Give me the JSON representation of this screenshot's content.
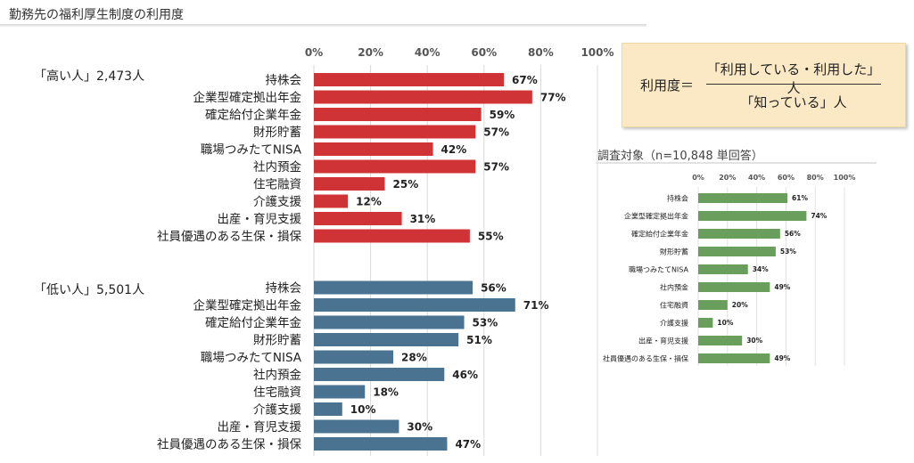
{
  "page": {
    "title": "勤務先の福利厚生制度の利用度"
  },
  "formula": {
    "lhs": "利用度＝",
    "numerator": "「利用している・利用した」人",
    "denominator": "「知っている」人"
  },
  "side": {
    "title": "調査対象（n=10,848 単回答）"
  },
  "chart_data": [
    {
      "type": "bar",
      "orientation": "horizontal",
      "group_label": "「高い人」2,473人",
      "ticks": [
        "0%",
        "20%",
        "40%",
        "60%",
        "80%",
        "100%"
      ],
      "xlim": [
        0,
        100
      ],
      "grid": true,
      "color": "#d03336",
      "categories": [
        "持株会",
        "企業型確定拠出年金",
        "確定給付企業年金",
        "財形貯蓄",
        "職場つみたてNISA",
        "社内預金",
        "住宅融資",
        "介護支援",
        "出産・育児支援",
        "社員優遇のある生保・損保"
      ],
      "values": [
        67,
        77,
        59,
        57,
        42,
        57,
        25,
        12,
        31,
        55
      ],
      "value_labels": [
        "67%",
        "77%",
        "59%",
        "57%",
        "42%",
        "57%",
        "25%",
        "12%",
        "31%",
        "55%"
      ]
    },
    {
      "type": "bar",
      "orientation": "horizontal",
      "group_label": "「低い人」5,501人",
      "ticks": [
        "0%",
        "20%",
        "40%",
        "60%",
        "80%",
        "100%"
      ],
      "xlim": [
        0,
        100
      ],
      "grid": true,
      "color": "#4a7391",
      "categories": [
        "持株会",
        "企業型確定拠出年金",
        "確定給付企業年金",
        "財形貯蓄",
        "職場つみたてNISA",
        "社内預金",
        "住宅融資",
        "介護支援",
        "出産・育児支援",
        "社員優遇のある生保・損保"
      ],
      "values": [
        56,
        71,
        53,
        51,
        28,
        46,
        18,
        10,
        30,
        47
      ],
      "value_labels": [
        "56%",
        "71%",
        "53%",
        "51%",
        "28%",
        "46%",
        "18%",
        "10%",
        "30%",
        "47%"
      ]
    },
    {
      "type": "bar",
      "orientation": "horizontal",
      "ticks": [
        "0%",
        "20%",
        "40%",
        "60%",
        "80%",
        "100%"
      ],
      "xlim": [
        0,
        100
      ],
      "grid": true,
      "color": "#6a9e5c",
      "categories": [
        "持株会",
        "企業型確定拠出年金",
        "確定給付企業年金",
        "財形貯蓄",
        "職場つみたてNISA",
        "社内預金",
        "住宅融資",
        "介護支援",
        "出産・育児支援",
        "社員優遇のある生保・損保"
      ],
      "values": [
        61,
        74,
        56,
        53,
        34,
        49,
        20,
        10,
        30,
        49
      ],
      "value_labels": [
        "61%",
        "74%",
        "56%",
        "53%",
        "34%",
        "49%",
        "20%",
        "10%",
        "30%",
        "49%"
      ]
    }
  ]
}
